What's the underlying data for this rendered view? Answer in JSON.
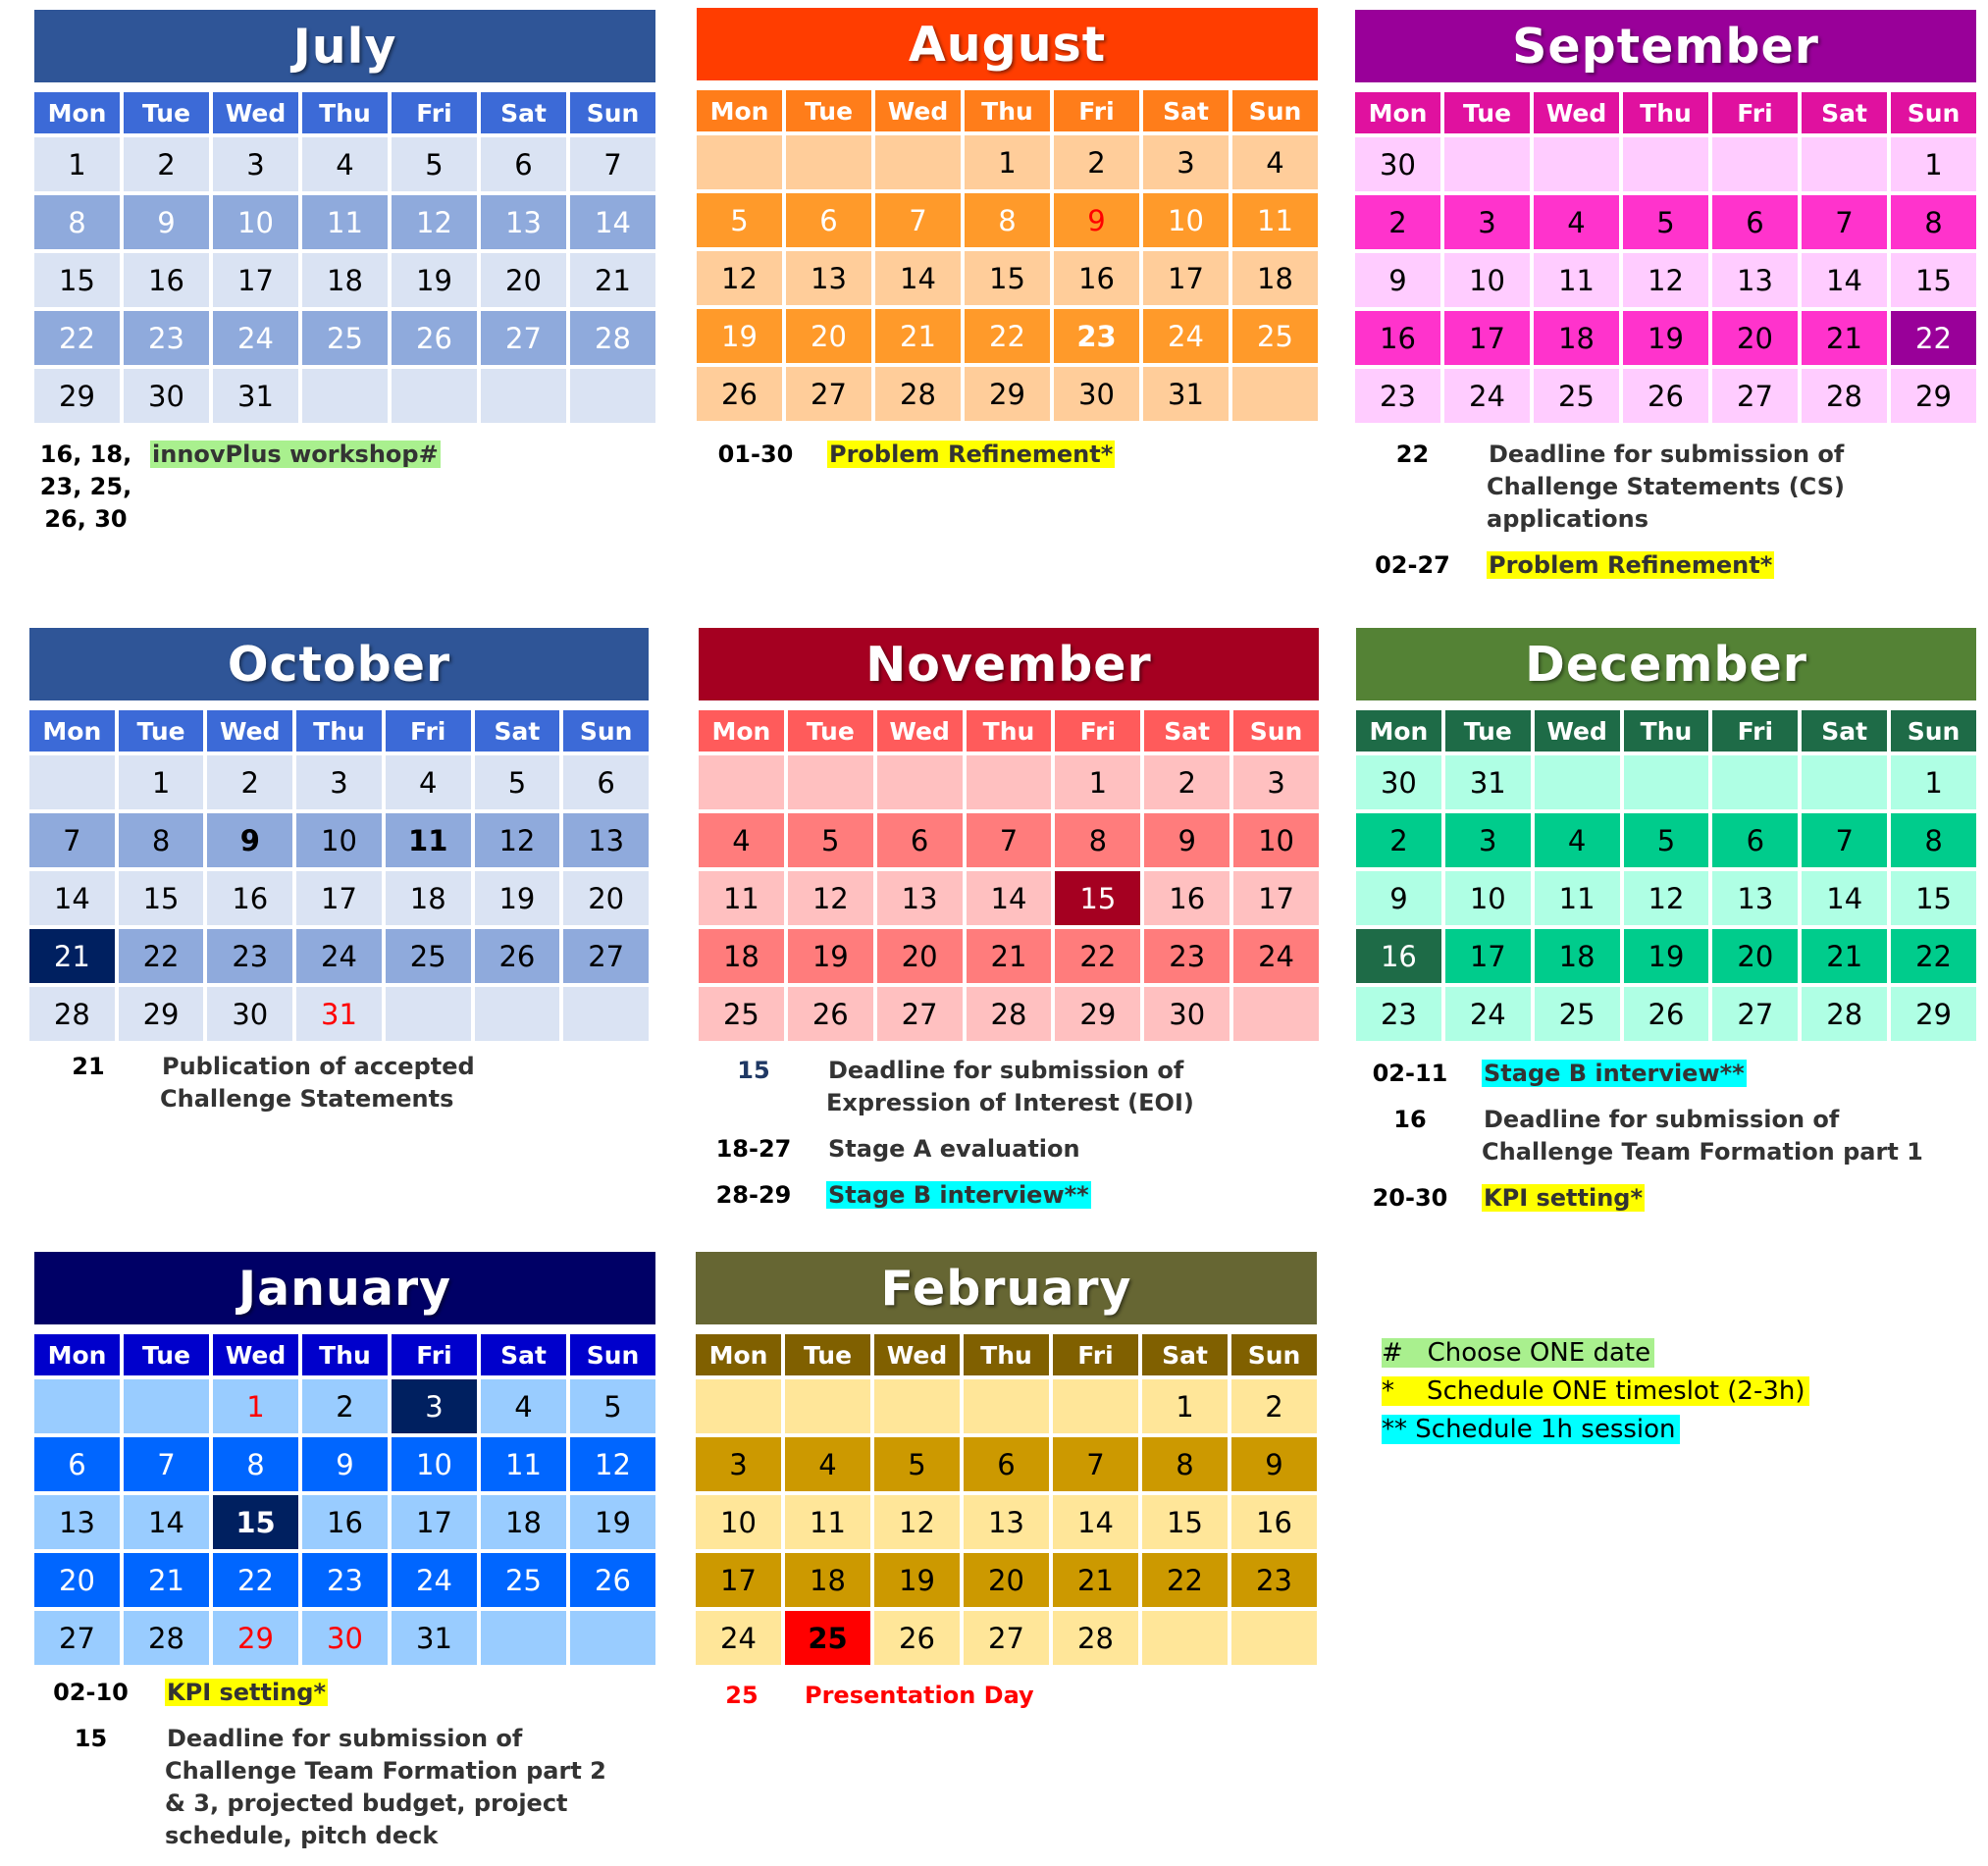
{
  "weekdays": [
    "Mon",
    "Tue",
    "Wed",
    "Thu",
    "Fri",
    "Sat",
    "Sun"
  ],
  "months": [
    {
      "key": "jul",
      "name": "July",
      "title_bg": "#2F5597",
      "head_bg": "#3C6AD7",
      "light": "#DAE3F3",
      "dark": "#8FAADC",
      "light_text": "#000000",
      "dark_text": "#FFFFFF",
      "days": [
        "1",
        "2",
        "3",
        "4",
        "5",
        "6",
        "7",
        "8",
        "9",
        "10",
        "11",
        "12",
        "13",
        "14",
        "15",
        "16",
        "17",
        "18",
        "19",
        "20",
        "21",
        "22",
        "23",
        "24",
        "25",
        "26",
        "27",
        "28",
        "29",
        "30",
        "31",
        "",
        "",
        "",
        ""
      ],
      "special": {},
      "notes": [
        {
          "date": "16, 18,\n23, 25,\n26, 30",
          "text": "innovPlus workshop#",
          "highlight": "#A9F08E"
        }
      ]
    },
    {
      "key": "aug",
      "name": "August",
      "title_bg": "#FF3D00",
      "head_bg": "#FF7D1A",
      "light": "#FFCD9A",
      "dark": "#FF9A2A",
      "light_text": "#000000",
      "dark_text": "#FFFFFF",
      "days": [
        "",
        "",
        "",
        "1",
        "2",
        "3",
        "4",
        "5",
        "6",
        "7",
        "8",
        "9",
        "10",
        "11",
        "12",
        "13",
        "14",
        "15",
        "16",
        "17",
        "18",
        "19",
        "20",
        "21",
        "22",
        "23",
        "24",
        "25",
        "26",
        "27",
        "28",
        "29",
        "30",
        "31",
        ""
      ],
      "special": {
        "11": {
          "color": "#FF0000"
        },
        "25": {
          "bold": true
        }
      },
      "notes": [
        {
          "date": "01-30",
          "text": "Problem Refinement*",
          "highlight": "#FFFF00"
        }
      ]
    },
    {
      "key": "sep",
      "name": "September",
      "title_bg": "#990099",
      "head_bg": "#E0119F",
      "light": "#FFCCFF",
      "dark": "#FF33CC",
      "light_text": "#000000",
      "dark_text": "#000000",
      "days": [
        "30",
        "",
        "",
        "",
        "",
        "",
        "1",
        "2",
        "3",
        "4",
        "5",
        "6",
        "7",
        "8",
        "9",
        "10",
        "11",
        "12",
        "13",
        "14",
        "15",
        "16",
        "17",
        "18",
        "19",
        "20",
        "21",
        "22",
        "23",
        "24",
        "25",
        "26",
        "27",
        "28",
        "29"
      ],
      "special": {
        "27": {
          "bg": "#990099",
          "color": "#FFFFFF"
        }
      },
      "notes": [
        {
          "date": "22",
          "text": "Deadline for submission of Challenge Statements (CS) applications",
          "highlight": ""
        },
        {
          "date": "02-27",
          "text": "Problem Refinement*",
          "highlight": "#FFFF00"
        }
      ]
    },
    {
      "key": "oct",
      "name": "October",
      "title_bg": "#2F5597",
      "head_bg": "#3C6AD7",
      "light": "#DAE3F3",
      "dark": "#8FAADC",
      "light_text": "#000000",
      "dark_text": "#000000",
      "days": [
        "",
        "1",
        "2",
        "3",
        "4",
        "5",
        "6",
        "7",
        "8",
        "9",
        "10",
        "11",
        "12",
        "13",
        "14",
        "15",
        "16",
        "17",
        "18",
        "19",
        "20",
        "21",
        "22",
        "23",
        "24",
        "25",
        "26",
        "27",
        "28",
        "29",
        "30",
        "31",
        "",
        "",
        ""
      ],
      "special": {
        "9": {
          "bold": true
        },
        "11": {
          "bold": true
        },
        "21": {
          "bg": "#002060",
          "color": "#FFFFFF"
        },
        "31": {
          "color": "#FF0000"
        }
      },
      "notes": [
        {
          "date": "21",
          "text": "Publication of accepted Challenge Statements",
          "highlight": ""
        }
      ]
    },
    {
      "key": "nov",
      "name": "November",
      "title_bg": "#A50021",
      "head_bg": "#FF5B5B",
      "light": "#FFC0C0",
      "dark": "#FF7C7C",
      "light_text": "#000000",
      "dark_text": "#000000",
      "days": [
        "",
        "",
        "",
        "",
        "1",
        "2",
        "3",
        "4",
        "5",
        "6",
        "7",
        "8",
        "9",
        "10",
        "11",
        "12",
        "13",
        "14",
        "15",
        "16",
        "17",
        "18",
        "19",
        "20",
        "21",
        "22",
        "23",
        "24",
        "25",
        "26",
        "27",
        "28",
        "29",
        "30",
        ""
      ],
      "special": {
        "18": {
          "bg": "#A50021",
          "color": "#FFFFFF"
        }
      },
      "notes": [
        {
          "date": "15",
          "text": "Deadline for submission of Expression of Interest (EOI)",
          "highlight": "",
          "date_color": "#1F3864"
        },
        {
          "date": "18-27",
          "text": "Stage A evaluation",
          "highlight": ""
        },
        {
          "date": "28-29",
          "text": "Stage B interview**",
          "highlight": "#00FFFF"
        }
      ]
    },
    {
      "key": "dec",
      "name": "December",
      "title_bg": "#548235",
      "head_bg": "#1E6B47",
      "light": "#AFFFE4",
      "dark": "#00CC8C",
      "light_text": "#000000",
      "dark_text": "#000000",
      "days": [
        "30",
        "31",
        "",
        "",
        "",
        "",
        "1",
        "2",
        "3",
        "4",
        "5",
        "6",
        "7",
        "8",
        "9",
        "10",
        "11",
        "12",
        "13",
        "14",
        "15",
        "16",
        "17",
        "18",
        "19",
        "20",
        "21",
        "22",
        "23",
        "24",
        "25",
        "26",
        "27",
        "28",
        "29"
      ],
      "special": {
        "21": {
          "bg": "#1E6B47",
          "color": "#FFFFFF"
        }
      },
      "notes": [
        {
          "date": "02-11",
          "text": "Stage B interview**",
          "highlight": "#00FFFF"
        },
        {
          "date": "16",
          "text": "Deadline for submission of Challenge Team Formation part 1",
          "highlight": ""
        },
        {
          "date": "20-30",
          "text": "KPI setting*",
          "highlight": "#FFFF00"
        }
      ]
    },
    {
      "key": "jan",
      "name": "January",
      "title_bg": "#000066",
      "head_bg": "#0000CC",
      "light": "#99CCFF",
      "dark": "#0066FF",
      "light_text": "#000000",
      "dark_text": "#FFFFFF",
      "days": [
        "",
        "",
        "1",
        "2",
        "3",
        "4",
        "5",
        "6",
        "7",
        "8",
        "9",
        "10",
        "11",
        "12",
        "13",
        "14",
        "15",
        "16",
        "17",
        "18",
        "19",
        "20",
        "21",
        "22",
        "23",
        "24",
        "25",
        "26",
        "27",
        "28",
        "29",
        "30",
        "31",
        "",
        ""
      ],
      "special": {
        "2": {
          "color": "#FF0000"
        },
        "4": {
          "bg": "#002060",
          "color": "#FFFFFF"
        },
        "16": {
          "bg": "#002060",
          "color": "#FFFFFF",
          "bold": true
        },
        "30": {
          "color": "#FF0000"
        },
        "31": {
          "color": "#FF0000"
        }
      },
      "notes": [
        {
          "date": "02-10",
          "text": "KPI setting*",
          "highlight": "#FFFF00"
        },
        {
          "date": "15",
          "text": "Deadline for submission of Challenge Team Formation part 2 & 3, projected budget, project schedule, pitch deck",
          "highlight": ""
        }
      ]
    },
    {
      "key": "feb",
      "name": "February",
      "title_bg": "#666633",
      "head_bg": "#806000",
      "light": "#FFE699",
      "dark": "#CC9900",
      "light_text": "#000000",
      "dark_text": "#000000",
      "days": [
        "",
        "",
        "",
        "",
        "",
        "1",
        "2",
        "3",
        "4",
        "5",
        "6",
        "7",
        "8",
        "9",
        "10",
        "11",
        "12",
        "13",
        "14",
        "15",
        "16",
        "17",
        "18",
        "19",
        "20",
        "21",
        "22",
        "23",
        "24",
        "25",
        "26",
        "27",
        "28",
        "",
        ""
      ],
      "special": {
        "29": {
          "bg": "#FF0000",
          "color": "#000000",
          "bold": true
        }
      },
      "notes": [
        {
          "date": "25",
          "text": "Presentation Day",
          "highlight": "",
          "color": "#FF0000",
          "date_color": "#FF0000"
        }
      ]
    }
  ],
  "legend": [
    {
      "text": "#   Choose ONE date",
      "highlight": "#A9F08E"
    },
    {
      "text": "*    Schedule ONE timeslot (2-3h)",
      "highlight": "#FFFF00"
    },
    {
      "text": "** Schedule 1h session",
      "highlight": "#00FFFF"
    }
  ]
}
